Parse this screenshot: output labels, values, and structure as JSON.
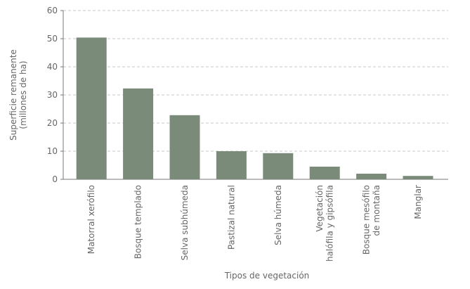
{
  "chart_data": {
    "type": "bar",
    "y_label": "Superficie remanente\n(millones de ha)",
    "x_label": "Tipos de vegetación",
    "categories": [
      "Matorral xerófilo",
      "Bosque templado",
      "Selva subhúmeda",
      "Pastizal natural",
      "Selva húmeda",
      "Vegetación\nhalófila y gipsófila",
      "Bosque mesófilo\nde montaña",
      "Manglar"
    ],
    "values": [
      50.4,
      32.3,
      22.8,
      10,
      9.3,
      4.5,
      2,
      1.2
    ],
    "color": "#7b8b79",
    "ylim": [
      0,
      60
    ],
    "yticks": [
      0,
      10,
      20,
      30,
      40,
      50,
      60
    ],
    "grid": true
  }
}
